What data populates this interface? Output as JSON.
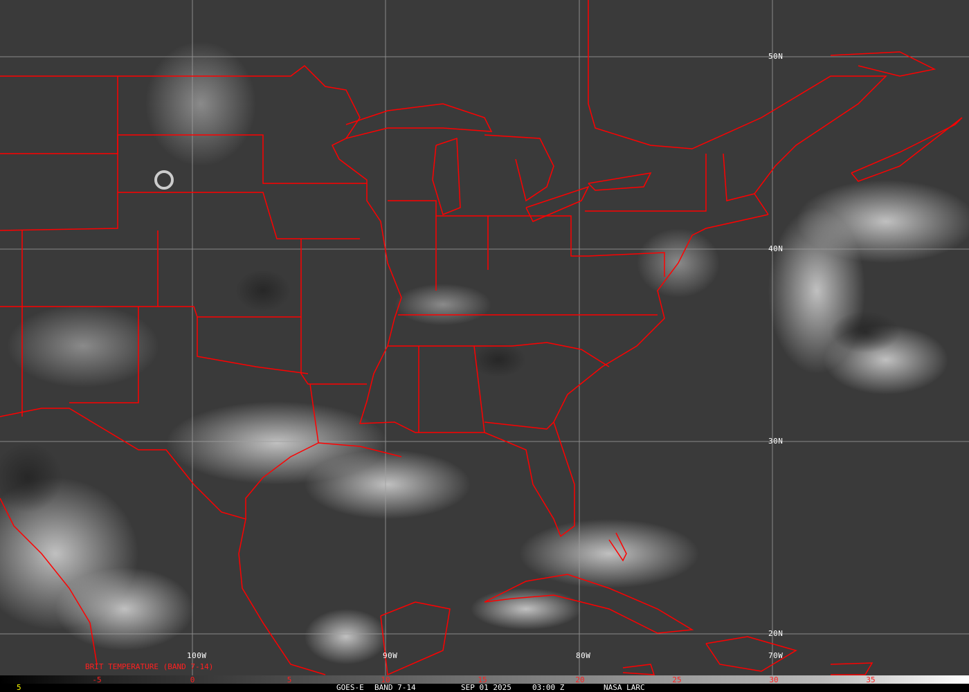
{
  "image": {
    "satellite": "GOES-E",
    "band": "BAND 7-14",
    "date": "SEP 01 2025",
    "time": "03:00 Z",
    "source": "NASA LARC",
    "footer_left": "5",
    "product_label": "BRIT TEMPERATURE (BAND 7-14)"
  },
  "grid": {
    "latitudes": [
      "50N",
      "40N",
      "30N",
      "20N"
    ],
    "longitudes": [
      "100W",
      "90W",
      "80W",
      "70W"
    ]
  },
  "colorbar": {
    "ticks": [
      "-5",
      "0",
      "5",
      "10",
      "15",
      "20",
      "25",
      "30",
      "35"
    ],
    "tick_color": "#ff2020",
    "gradient": [
      "#000000",
      "#ffffff"
    ]
  },
  "colors": {
    "borders": "#ff0000",
    "grid": "#a0a0a0",
    "background": "#3a3a3a"
  }
}
